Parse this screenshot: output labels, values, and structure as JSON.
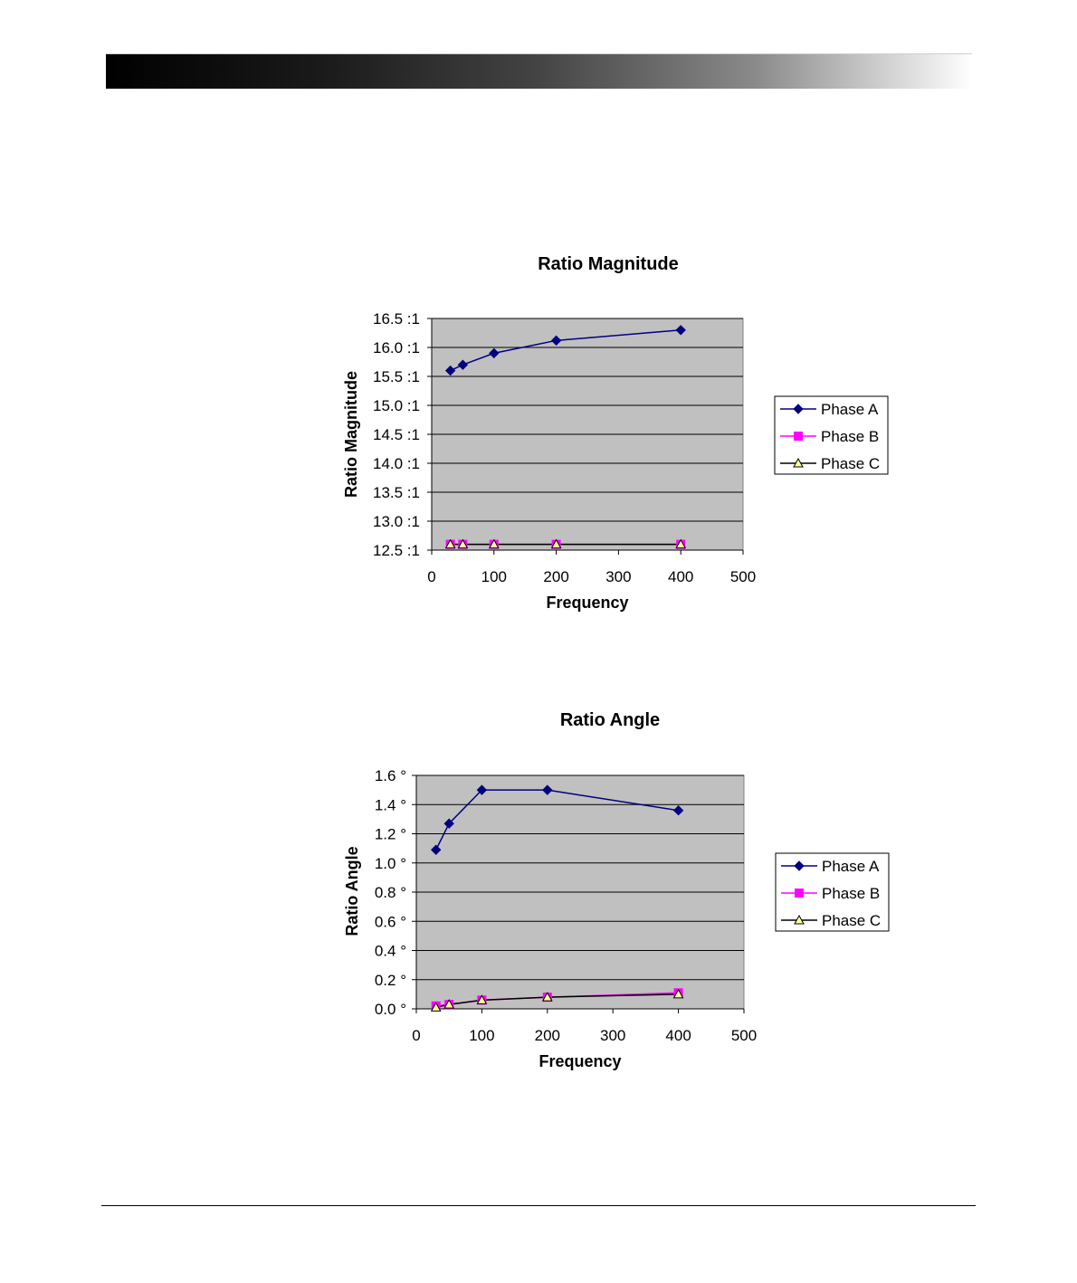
{
  "chart_data": [
    {
      "type": "line",
      "title": "Ratio Magnitude",
      "xlabel": "Frequency",
      "ylabel": "Ratio Magnitude",
      "xlim": [
        0,
        500
      ],
      "ylim": [
        12.5,
        16.5
      ],
      "xticks": [
        "0",
        "100",
        "200",
        "300",
        "400",
        "500"
      ],
      "xtick_values": [
        0,
        100,
        200,
        300,
        400,
        500
      ],
      "yticks": [
        "12.5 :1",
        "13.0 :1",
        "13.5 :1",
        "14.0 :1",
        "14.5 :1",
        "15.0 :1",
        "15.5 :1",
        "16.0 :1",
        "16.5 :1"
      ],
      "ytick_values": [
        12.5,
        13.0,
        13.5,
        14.0,
        14.5,
        15.0,
        15.5,
        16.0,
        16.5
      ],
      "grid": "horizontal",
      "legend_position": "right",
      "series": [
        {
          "name": "Phase A",
          "color": "#000080",
          "marker": "diamond",
          "x": [
            30,
            50,
            100,
            200,
            400
          ],
          "y": [
            15.6,
            15.7,
            15.9,
            16.12,
            16.3
          ]
        },
        {
          "name": "Phase B",
          "color": "#ff00ff",
          "marker": "square",
          "x": [
            30,
            50,
            100,
            200,
            400
          ],
          "y": [
            12.6,
            12.6,
            12.6,
            12.6,
            12.6
          ]
        },
        {
          "name": "Phase C",
          "color": "#000000",
          "marker": "triangle",
          "x": [
            30,
            50,
            100,
            200,
            400
          ],
          "y": [
            12.6,
            12.6,
            12.6,
            12.6,
            12.6
          ]
        }
      ]
    },
    {
      "type": "line",
      "title": "Ratio Angle",
      "xlabel": "Frequency",
      "ylabel": "Ratio Angle",
      "xlim": [
        0,
        500
      ],
      "ylim": [
        0.0,
        1.6
      ],
      "xticks": [
        "0",
        "100",
        "200",
        "300",
        "400",
        "500"
      ],
      "xtick_values": [
        0,
        100,
        200,
        300,
        400,
        500
      ],
      "yticks": [
        "0.0 °",
        "0.2 °",
        "0.4 °",
        "0.6 °",
        "0.8 °",
        "1.0 °",
        "1.2 °",
        "1.4 °",
        "1.6 °"
      ],
      "ytick_values": [
        0.0,
        0.2,
        0.4,
        0.6,
        0.8,
        1.0,
        1.2,
        1.4,
        1.6
      ],
      "grid": "horizontal",
      "legend_position": "right",
      "series": [
        {
          "name": "Phase A",
          "color": "#000080",
          "marker": "diamond",
          "x": [
            30,
            50,
            100,
            200,
            400
          ],
          "y": [
            1.09,
            1.27,
            1.5,
            1.5,
            1.36
          ]
        },
        {
          "name": "Phase B",
          "color": "#ff00ff",
          "marker": "square",
          "x": [
            30,
            50,
            100,
            200,
            400
          ],
          "y": [
            0.02,
            0.03,
            0.06,
            0.08,
            0.11
          ]
        },
        {
          "name": "Phase C",
          "color": "#000000",
          "marker": "triangle",
          "x": [
            30,
            50,
            100,
            200,
            400
          ],
          "y": [
            0.01,
            0.03,
            0.06,
            0.08,
            0.1
          ]
        }
      ]
    }
  ]
}
